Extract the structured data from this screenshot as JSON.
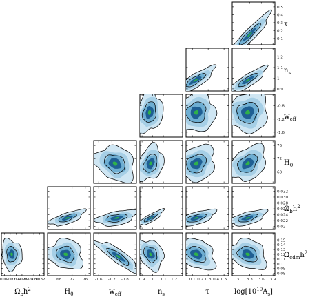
{
  "chart_data": {
    "type": "corner",
    "parameters": [
      {
        "key": "omega_b",
        "label": "Ωbh²",
        "range": [
          0.019,
          0.0335
        ],
        "ticks": [
          0.02,
          0.022,
          0.024,
          0.026,
          0.028,
          0.03,
          0.032
        ],
        "tick_labels": [
          "0.02",
          "0.022",
          "0.024",
          "0.026",
          "0.028",
          "0.030",
          "0.032"
        ]
      },
      {
        "key": "h0",
        "label": "H0",
        "range": [
          64.5,
          77.5
        ],
        "ticks": [
          68,
          72,
          76
        ],
        "tick_labels": [
          "68",
          "72",
          "76"
        ]
      },
      {
        "key": "w_eff",
        "label": "weff",
        "range": [
          -1.75,
          -0.45
        ],
        "ticks": [
          -1.6,
          -1.2,
          -0.8
        ],
        "tick_labels": [
          "-1.6",
          "-1.2",
          "-0.8"
        ]
      },
      {
        "key": "n_s",
        "label": "ns",
        "range": [
          0.88,
          1.28
        ],
        "ticks": [
          0.9,
          1.0,
          1.1,
          1.2
        ],
        "tick_labels": [
          "0.9",
          "1",
          "1.1",
          "1.2"
        ]
      },
      {
        "key": "tau",
        "label": "τ",
        "range": [
          0.02,
          0.56
        ],
        "ticks": [
          0.1,
          0.2,
          0.3,
          0.4,
          0.5
        ],
        "tick_labels": [
          "0.1",
          "0.2",
          "0.3",
          "0.4",
          "0.5"
        ]
      },
      {
        "key": "log_as",
        "label": "log[10¹⁰As]",
        "range": [
          2.85,
          3.95
        ],
        "ticks": [
          3.0,
          3.3,
          3.6,
          3.9
        ],
        "tick_labels": [
          "3",
          "3.3",
          "3.6",
          "3.9"
        ]
      }
    ],
    "row_labels": [
      {
        "param": "tau",
        "text": "τ"
      },
      {
        "param": "n_s",
        "text": "ns"
      },
      {
        "param": "w_eff",
        "text": "weff"
      },
      {
        "param": "h0",
        "text": "H0"
      },
      {
        "param": "omega_b",
        "text": "Ωbh²"
      },
      {
        "param": "omega_cdm",
        "text": "Ωcdmh²"
      }
    ],
    "bottom_labels": [
      {
        "param": "omega_b",
        "text": "Ωbh²"
      },
      {
        "param": "h0",
        "text": "H0"
      },
      {
        "param": "w_eff",
        "text": "weff"
      },
      {
        "param": "n_s",
        "text": "ns"
      },
      {
        "param": "tau",
        "text": "τ"
      },
      {
        "param": "log_as",
        "text": "log[10¹⁰As]"
      }
    ],
    "right_axes": [
      {
        "param": "tau",
        "range": [
          0.02,
          0.56
        ],
        "ticks": [
          0.1,
          0.2,
          0.3,
          0.4,
          0.5
        ],
        "tick_labels": [
          "0.1",
          "0.2",
          "0.3",
          "0.4",
          "0.5"
        ]
      },
      {
        "param": "n_s",
        "range": [
          0.88,
          1.28
        ],
        "ticks": [
          0.9,
          1.0,
          1.1,
          1.2
        ],
        "tick_labels": [
          "0.9",
          "1",
          "1.1",
          "1.2"
        ]
      },
      {
        "param": "w_eff",
        "range": [
          -1.75,
          -0.45
        ],
        "ticks": [
          -1.6,
          -1.2,
          -0.8
        ],
        "tick_labels": [
          "-1.6",
          "-1.2",
          "-0.8"
        ]
      },
      {
        "param": "h0",
        "range": [
          64.5,
          77.5
        ],
        "ticks": [
          68,
          72,
          76
        ],
        "tick_labels": [
          "68",
          "72",
          "76"
        ]
      },
      {
        "param": "omega_b",
        "range": [
          0.019,
          0.0335
        ],
        "ticks": [
          0.02,
          0.022,
          0.024,
          0.026,
          0.028,
          0.03,
          0.032
        ],
        "tick_labels": [
          "0.02",
          "0.022",
          "0.024",
          "0.026",
          "0.028",
          "0.030",
          "0.032"
        ]
      },
      {
        "param": "omega_cdm",
        "range": [
          0.075,
          0.165
        ],
        "ticks": [
          0.08,
          0.09,
          0.1,
          0.11,
          0.12,
          0.13,
          0.14,
          0.15
        ],
        "tick_labels": [
          "0.08",
          "0.09",
          "0.1",
          "0.11",
          "0.12",
          "0.13",
          "0.14",
          "0.15"
        ]
      }
    ],
    "panels": [
      {
        "row": 0,
        "col": 5,
        "x": "log_as",
        "y": "tau",
        "center": [
          3.3,
          0.15
        ],
        "sd": [
          0.22,
          0.11
        ],
        "corr": 0.93
      },
      {
        "row": 1,
        "col": 4,
        "x": "tau",
        "y": "n_s",
        "center": [
          0.14,
          0.98
        ],
        "sd": [
          0.1,
          0.05
        ],
        "corr": 0.82
      },
      {
        "row": 1,
        "col": 5,
        "x": "log_as",
        "y": "n_s",
        "center": [
          3.25,
          0.98
        ],
        "sd": [
          0.2,
          0.05
        ],
        "corr": 0.85
      },
      {
        "row": 2,
        "col": 3,
        "x": "n_s",
        "y": "w_eff",
        "center": [
          0.97,
          -1.0
        ],
        "sd": [
          0.05,
          0.25
        ],
        "corr": 0.2
      },
      {
        "row": 2,
        "col": 4,
        "x": "tau",
        "y": "w_eff",
        "center": [
          0.15,
          -1.0
        ],
        "sd": [
          0.1,
          0.25
        ],
        "corr": 0.1
      },
      {
        "row": 2,
        "col": 5,
        "x": "log_as",
        "y": "w_eff",
        "center": [
          3.25,
          -1.0
        ],
        "sd": [
          0.22,
          0.25
        ],
        "corr": 0.1
      },
      {
        "row": 3,
        "col": 2,
        "x": "w_eff",
        "y": "h0",
        "center": [
          -1.1,
          70.5
        ],
        "sd": [
          0.25,
          2.2
        ],
        "corr": -0.25
      },
      {
        "row": 3,
        "col": 3,
        "x": "n_s",
        "y": "h0",
        "center": [
          0.98,
          70.5
        ],
        "sd": [
          0.05,
          2.2
        ],
        "corr": 0.3
      },
      {
        "row": 3,
        "col": 4,
        "x": "tau",
        "y": "h0",
        "center": [
          0.15,
          70.5
        ],
        "sd": [
          0.1,
          2.2
        ],
        "corr": 0.2
      },
      {
        "row": 3,
        "col": 5,
        "x": "log_as",
        "y": "h0",
        "center": [
          3.25,
          70.5
        ],
        "sd": [
          0.2,
          2.2
        ],
        "corr": 0.35
      },
      {
        "row": 4,
        "col": 1,
        "x": "h0",
        "y": "omega_b",
        "center": [
          70.5,
          0.0229
        ],
        "sd": [
          2.2,
          0.0011
        ],
        "corr": 0.7
      },
      {
        "row": 4,
        "col": 2,
        "x": "w_eff",
        "y": "omega_b",
        "center": [
          -1.05,
          0.0229
        ],
        "sd": [
          0.25,
          0.0011
        ],
        "corr": 0.45
      },
      {
        "row": 4,
        "col": 3,
        "x": "n_s",
        "y": "omega_b",
        "center": [
          0.98,
          0.0229
        ],
        "sd": [
          0.05,
          0.0011
        ],
        "corr": 0.85
      },
      {
        "row": 4,
        "col": 4,
        "x": "tau",
        "y": "omega_b",
        "center": [
          0.15,
          0.0229
        ],
        "sd": [
          0.1,
          0.0011
        ],
        "corr": 0.6
      },
      {
        "row": 4,
        "col": 5,
        "x": "log_as",
        "y": "omega_b",
        "center": [
          3.25,
          0.0229
        ],
        "sd": [
          0.2,
          0.0011
        ],
        "corr": 0.6
      },
      {
        "row": 5,
        "col": 0,
        "x": "omega_b",
        "y": "omega_cdm",
        "center": [
          0.0225,
          0.12
        ],
        "sd": [
          0.0014,
          0.013
        ],
        "corr": -0.1
      },
      {
        "row": 5,
        "col": 1,
        "x": "h0",
        "y": "omega_cdm",
        "center": [
          70.0,
          0.12
        ],
        "sd": [
          2.2,
          0.013
        ],
        "corr": -0.15
      },
      {
        "row": 5,
        "col": 2,
        "x": "w_eff",
        "y": "omega_cdm",
        "center": [
          -1.0,
          0.115
        ],
        "sd": [
          0.27,
          0.014
        ],
        "corr": -0.88
      },
      {
        "row": 5,
        "col": 3,
        "x": "n_s",
        "y": "omega_cdm",
        "center": [
          0.98,
          0.12
        ],
        "sd": [
          0.05,
          0.013
        ],
        "corr": -0.3
      },
      {
        "row": 5,
        "col": 4,
        "x": "tau",
        "y": "omega_cdm",
        "center": [
          0.15,
          0.12
        ],
        "sd": [
          0.1,
          0.013
        ],
        "corr": -0.3
      },
      {
        "row": 5,
        "col": 5,
        "x": "log_as",
        "y": "omega_cdm",
        "center": [
          3.25,
          0.12
        ],
        "sd": [
          0.2,
          0.013
        ],
        "corr": -0.25
      }
    ],
    "colors": {
      "outer": "#cfe6f3",
      "mid": "#6eaed2",
      "inner": "#1f5f93",
      "core": "#2fb14a",
      "contour": "#000000"
    },
    "grid": false,
    "legend": "none"
  }
}
